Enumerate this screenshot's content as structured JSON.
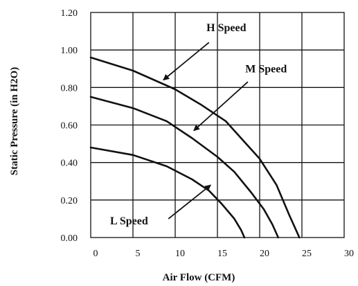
{
  "chart_data": {
    "type": "line",
    "xlabel": "Air Flow (CFM)",
    "ylabel": "Static Pressure (in H2O)",
    "xlim": [
      0,
      30
    ],
    "ylim": [
      0,
      1.2
    ],
    "x_ticks": [
      {
        "value": 0,
        "label": "0"
      },
      {
        "value": 5,
        "label": "5"
      },
      {
        "value": 10,
        "label": "10"
      },
      {
        "value": 15,
        "label": "15"
      },
      {
        "value": 20,
        "label": "20"
      },
      {
        "value": 25,
        "label": "25"
      },
      {
        "value": 30,
        "label": "30"
      }
    ],
    "y_ticks": [
      {
        "value": 0,
        "label": "0.00"
      },
      {
        "value": 0.2,
        "label": "0.20"
      },
      {
        "value": 0.4,
        "label": "0.40"
      },
      {
        "value": 0.6,
        "label": "0.60"
      },
      {
        "value": 0.8,
        "label": "0.80"
      },
      {
        "value": 1.0,
        "label": "1.00"
      },
      {
        "value": 1.2,
        "label": "1.20"
      }
    ],
    "grid": true,
    "series": [
      {
        "key": "h",
        "points": [
          [
            0,
            0.96
          ],
          [
            5,
            0.89
          ],
          [
            10,
            0.79
          ],
          [
            13,
            0.71
          ],
          [
            16,
            0.62
          ],
          [
            18,
            0.52
          ],
          [
            20,
            0.42
          ],
          [
            22,
            0.28
          ],
          [
            23.5,
            0.12
          ],
          [
            24.3,
            0.04
          ],
          [
            24.7,
            0.0
          ]
        ]
      },
      {
        "key": "m",
        "points": [
          [
            0,
            0.75
          ],
          [
            5,
            0.69
          ],
          [
            9,
            0.62
          ],
          [
            12,
            0.53
          ],
          [
            15,
            0.43
          ],
          [
            17,
            0.35
          ],
          [
            19,
            0.24
          ],
          [
            20.5,
            0.15
          ],
          [
            21.5,
            0.07
          ],
          [
            22.2,
            0.0
          ]
        ]
      },
      {
        "key": "l",
        "points": [
          [
            0,
            0.48
          ],
          [
            5,
            0.44
          ],
          [
            9,
            0.38
          ],
          [
            12,
            0.31
          ],
          [
            14,
            0.25
          ],
          [
            15.5,
            0.18
          ],
          [
            17,
            0.1
          ],
          [
            17.8,
            0.04
          ],
          [
            18.2,
            0.0
          ]
        ]
      }
    ],
    "annotations": [
      {
        "text": "H Speed",
        "label_x": 13.7,
        "label_y": 1.1,
        "arrow_from": [
          14.0,
          1.04
        ],
        "arrow_to": [
          8.6,
          0.84
        ]
      },
      {
        "text": "M Speed",
        "label_x": 18.3,
        "label_y": 0.88,
        "arrow_from": [
          18.6,
          0.83
        ],
        "arrow_to": [
          12.2,
          0.57
        ]
      },
      {
        "text": "L Speed",
        "label_x": 2.3,
        "label_y": 0.07,
        "arrow_from": [
          9.2,
          0.1
        ],
        "arrow_to": [
          14.2,
          0.28
        ]
      }
    ]
  }
}
